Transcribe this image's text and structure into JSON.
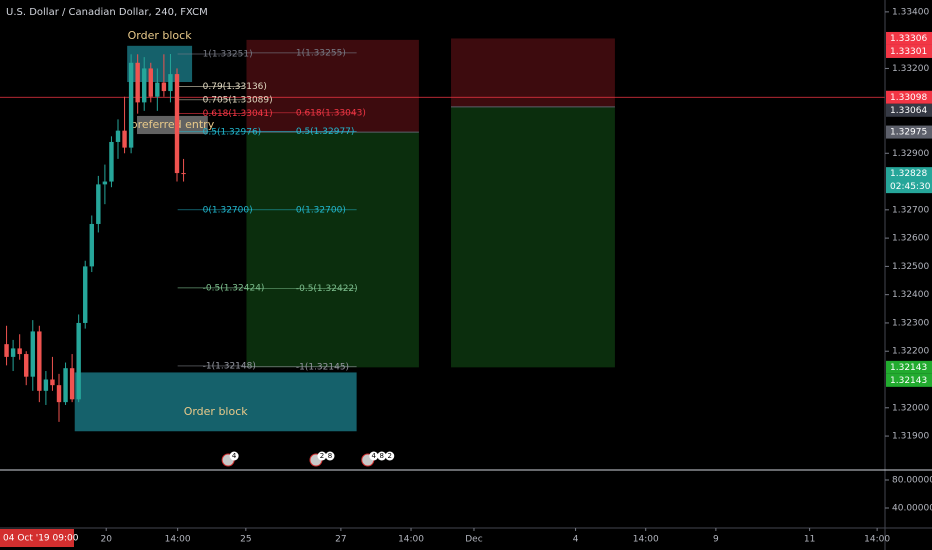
{
  "chart_data": {
    "type": "candlestick",
    "title": "U.S. Dollar / Canadian Dollar, 240, FXCM",
    "x": [
      1,
      2,
      3,
      4,
      5,
      6,
      7,
      8,
      9,
      10,
      11,
      12,
      13,
      14,
      15,
      16,
      17,
      18,
      19,
      20,
      21,
      22,
      23,
      24,
      25,
      26,
      27,
      28
    ],
    "open": [
      1.32225,
      1.3218,
      1.3221,
      1.3219,
      1.3211,
      1.3227,
      1.3206,
      1.321,
      1.3208,
      1.3202,
      1.3214,
      1.3203,
      1.323,
      1.325,
      1.3265,
      1.3279,
      1.328,
      1.3294,
      1.3298,
      1.3292,
      1.3322,
      1.3308,
      1.332,
      1.331,
      1.3315,
      1.3312,
      1.3318,
      1.3283
    ],
    "high": [
      1.3229,
      1.3224,
      1.3226,
      1.322,
      1.3231,
      1.3229,
      1.3213,
      1.3218,
      1.3212,
      1.3216,
      1.3219,
      1.3233,
      1.3252,
      1.3268,
      1.3282,
      1.3286,
      1.3296,
      1.3302,
      1.331,
      1.3325,
      1.3325,
      1.3324,
      1.3322,
      1.332,
      1.3325,
      1.33251,
      1.332,
      1.3288
    ],
    "low": [
      1.3215,
      1.3213,
      1.3217,
      1.3208,
      1.3206,
      1.3202,
      1.3201,
      1.3206,
      1.3195,
      1.3201,
      1.3202,
      1.3202,
      1.3228,
      1.3248,
      1.3262,
      1.3272,
      1.3278,
      1.3288,
      1.329,
      1.329,
      1.3304,
      1.3305,
      1.3308,
      1.3305,
      1.331,
      1.3308,
      1.328,
      1.328
    ],
    "close": [
      1.3218,
      1.3221,
      1.3219,
      1.3211,
      1.3227,
      1.3206,
      1.321,
      1.3208,
      1.3202,
      1.3214,
      1.3203,
      1.323,
      1.325,
      1.3265,
      1.3279,
      1.328,
      1.3294,
      1.3298,
      1.3292,
      1.3322,
      1.3308,
      1.332,
      1.331,
      1.3315,
      1.3312,
      1.3318,
      1.3283,
      1.32828
    ],
    "up_color": "#26a69a",
    "down_color": "#ef5350",
    "xlim": [
      0,
      135
    ],
    "xticks": [
      {
        "value": 16.2,
        "label": "20"
      },
      {
        "value": 27.1,
        "label": "14:00"
      },
      {
        "value": 37.5,
        "label": "25"
      },
      {
        "value": 52,
        "label": "27"
      },
      {
        "value": 62.7,
        "label": "14:00"
      },
      {
        "value": 72.3,
        "label": "Dec"
      },
      {
        "value": 87.8,
        "label": "4"
      },
      {
        "value": 98.5,
        "label": "14:00"
      },
      {
        "value": 109.2,
        "label": "9"
      },
      {
        "value": 123.5,
        "label": "11"
      },
      {
        "value": 133.8,
        "label": "14:00"
      }
    ],
    "crosshair_time_label": "04 Oct '19  09:00",
    "ylim": [
      1.3178,
      1.33442
    ],
    "yticks": [
      {
        "value": 1.334,
        "label": "1.33400"
      },
      {
        "value": 1.332,
        "label": "1.33200"
      },
      {
        "value": 1.329,
        "label": "1.32900"
      },
      {
        "value": 1.327,
        "label": "1.32700"
      },
      {
        "value": 1.326,
        "label": "1.32600"
      },
      {
        "value": 1.325,
        "label": "1.32500"
      },
      {
        "value": 1.324,
        "label": "1.32400"
      },
      {
        "value": 1.323,
        "label": "1.32300"
      },
      {
        "value": 1.322,
        "label": "1.32200"
      },
      {
        "value": 1.32,
        "label": "1.32000"
      },
      {
        "value": 1.319,
        "label": "1.31900"
      }
    ],
    "hline": {
      "value": 1.33098,
      "color": "#f23645"
    },
    "positions": [
      {
        "x": [
          37.6,
          63.9
        ],
        "entry": 1.32975,
        "stop": 1.33301,
        "target": 1.32143
      },
      {
        "x": [
          68.8,
          93.8
        ],
        "entry": 1.33064,
        "stop": 1.33306,
        "target": 1.32143
      }
    ],
    "zones": [
      {
        "label": "Order block",
        "x": [
          19.4,
          29.3
        ],
        "y": [
          1.33152,
          1.3328
        ],
        "color": "#1e8a99"
      },
      {
        "label": "Order block",
        "x": [
          11.4,
          54.4
        ],
        "y": [
          1.31917,
          1.32125
        ],
        "color": "#1e8a99"
      },
      {
        "label": "preferred entry",
        "x": [
          20.9,
          31.7
        ],
        "y": [
          1.32968,
          1.33032
        ],
        "color": "#8c8c8c"
      }
    ],
    "fibs": [
      {
        "x": [
          27.1,
          37.2
        ],
        "levels": [
          {
            "label": "1(1.33251)",
            "value": 1.33251,
            "color": "#787b86"
          },
          {
            "label": "0.79(1.33136)",
            "value": 1.33136,
            "color": "#e0d8c0"
          },
          {
            "label": "0.705(1.33089)",
            "value": 1.33089,
            "color": "#e0d8c0"
          },
          {
            "label": "0.618(1.33041)",
            "value": 1.33041,
            "color": "#f23645"
          },
          {
            "label": "0.5(1.32976)",
            "value": 1.32976,
            "color": "#22b8cf"
          },
          {
            "label": "0(1.32700)",
            "value": 1.327,
            "color": "#22b8cf"
          },
          {
            "label": "-0.5(1.32424)",
            "value": 1.32424,
            "color": "#7dbf8e"
          },
          {
            "label": "-1(1.32148)",
            "value": 1.32148,
            "color": "#9598a1"
          }
        ]
      },
      {
        "x": [
          37.2,
          54.4
        ],
        "levels": [
          {
            "label": "1(1.33255)",
            "value": 1.33255,
            "color": "#787b86"
          },
          {
            "label": "0.618(1.33043)",
            "value": 1.33043,
            "color": "#f23645"
          },
          {
            "label": "0.5(1.32977)",
            "value": 1.32977,
            "color": "#22b8cf"
          },
          {
            "label": "0(1.32700)",
            "value": 1.327,
            "color": "#22b8cf"
          },
          {
            "label": "-0.5(1.32422)",
            "value": 1.32422,
            "color": "#7dbf8e"
          },
          {
            "label": "-1(1.32145)",
            "value": 1.32145,
            "color": "#9598a1"
          }
        ]
      }
    ],
    "price_tags": [
      {
        "value": 1.33306,
        "color": "#f23645"
      },
      {
        "value": 1.33301,
        "color": "#f23645"
      },
      {
        "value": 1.33098,
        "color": "#f23645"
      },
      {
        "value": 1.33064,
        "color": "#363a45"
      },
      {
        "value": 1.32975,
        "color": "#5d606b"
      },
      {
        "value": 1.32828,
        "color": "#26a69a",
        "sub": "02:45:30"
      },
      {
        "value": 1.32143,
        "color": "#22ab2f"
      },
      {
        "value": 1.32143,
        "color": "#22ab2f"
      }
    ],
    "events": [
      {
        "x": 34.8,
        "counts": [
          4
        ]
      },
      {
        "x": 48.2,
        "counts": [
          2,
          8
        ]
      },
      {
        "x": 56.1,
        "counts": [
          4,
          8,
          2
        ]
      }
    ],
    "pane2": {
      "ylim": [
        11.4,
        94.3
      ],
      "yticks": [
        {
          "value": 80,
          "label": "80.00000"
        },
        {
          "value": 40,
          "label": "40.00000"
        }
      ]
    }
  }
}
